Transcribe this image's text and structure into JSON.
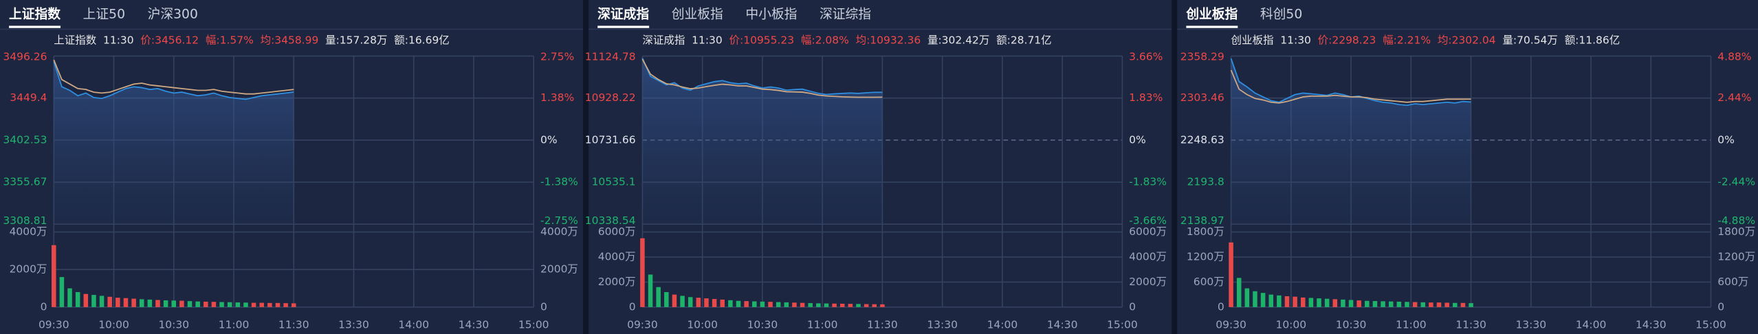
{
  "chart_data": [
    {
      "type": "line",
      "tabs": [
        "上证指数",
        "上证50",
        "沪深300"
      ],
      "active_tab": 0,
      "info": [
        {
          "text": "上证指数",
          "color": "#e6e6e6"
        },
        {
          "text": "11:30",
          "color": "#e6e6e6"
        },
        {
          "text": "价:3456.12",
          "color": "#f04848"
        },
        {
          "text": "幅:1.57%",
          "color": "#f04848"
        },
        {
          "text": "均:3458.99",
          "color": "#f04848"
        },
        {
          "text": "量:157.28万",
          "color": "#e6e6e6"
        },
        {
          "text": "额:16.69亿",
          "color": "#e6e6e6"
        }
      ],
      "x": [
        0,
        4,
        8,
        12,
        16,
        20,
        24,
        28,
        32,
        36,
        40,
        44,
        48,
        52,
        56,
        60,
        64,
        68,
        72,
        76,
        80,
        84,
        88,
        92,
        96,
        100,
        104,
        108,
        112,
        116,
        120
      ],
      "xlim": [
        0,
        240
      ],
      "xticks": [
        {
          "value": 0,
          "label": "09:30"
        },
        {
          "value": 30,
          "label": "10:00"
        },
        {
          "value": 60,
          "label": "10:30"
        },
        {
          "value": 90,
          "label": "11:00"
        },
        {
          "value": 120,
          "label": "11:30"
        },
        {
          "value": 150,
          "label": "13:30"
        },
        {
          "value": 180,
          "label": "14:00"
        },
        {
          "value": 210,
          "label": "14:30"
        },
        {
          "value": 240,
          "label": "15:00"
        }
      ],
      "ylim": [
        3308.81,
        3496.26
      ],
      "yticks": [
        3496.26,
        3449.4,
        3402.53,
        3355.67,
        3308.81
      ],
      "y2lim": [
        -2.75,
        2.75
      ],
      "y2ticks": [
        {
          "value": 2.75,
          "label": "2.75%"
        },
        {
          "value": 1.38,
          "label": "1.38%"
        },
        {
          "value": 0,
          "label": "0%"
        },
        {
          "value": -1.38,
          "label": "-1.38%"
        },
        {
          "value": -2.75,
          "label": "-2.75%"
        }
      ],
      "series": [
        {
          "color": "#2e8fe0",
          "values": [
            3490,
            3462,
            3458,
            3452,
            3455,
            3450,
            3449,
            3452,
            3456,
            3460,
            3462,
            3461,
            3459,
            3460,
            3457,
            3455,
            3456,
            3454,
            3452,
            3453,
            3455,
            3452,
            3450,
            3449,
            3448,
            3450,
            3452,
            3453,
            3454,
            3455,
            3456.12
          ]
        },
        {
          "color": "#cfa983",
          "values": [
            3492,
            3470,
            3465,
            3460,
            3459,
            3456,
            3455,
            3456,
            3459,
            3462,
            3465,
            3466,
            3464,
            3463,
            3462,
            3461,
            3460,
            3459,
            3458,
            3458,
            3459,
            3457,
            3456,
            3455,
            3454,
            3454,
            3455,
            3456,
            3457,
            3458,
            3458.99
          ]
        }
      ],
      "volume": {
        "type": "bar",
        "up_color": "#e84a4a",
        "down_color": "#1db36b",
        "ylim": [
          0,
          4000
        ],
        "yticks": [
          {
            "value": 4000,
            "label": "4000万"
          },
          {
            "value": 2000,
            "label": "2000万"
          },
          0
        ],
        "values": [
          3300,
          1600,
          1000,
          800,
          700,
          650,
          600,
          550,
          500,
          480,
          450,
          420,
          400,
          380,
          360,
          350,
          340,
          320,
          300,
          290,
          280,
          270,
          260,
          250,
          240,
          230,
          230,
          220,
          220,
          210,
          200
        ]
      }
    },
    {
      "type": "line",
      "tabs": [
        "深证成指",
        "创业板指",
        "中小板指",
        "深证综指"
      ],
      "active_tab": 0,
      "info": [
        {
          "text": "深证成指",
          "color": "#e6e6e6"
        },
        {
          "text": "11:30",
          "color": "#e6e6e6"
        },
        {
          "text": "价:10955.23",
          "color": "#f04848"
        },
        {
          "text": "幅:2.08%",
          "color": "#f04848"
        },
        {
          "text": "均:10932.36",
          "color": "#f04848"
        },
        {
          "text": "量:302.42万",
          "color": "#e6e6e6"
        },
        {
          "text": "额:28.71亿",
          "color": "#e6e6e6"
        }
      ],
      "x": [
        0,
        4,
        8,
        12,
        16,
        20,
        24,
        28,
        32,
        36,
        40,
        44,
        48,
        52,
        56,
        60,
        64,
        68,
        72,
        76,
        80,
        84,
        88,
        92,
        96,
        100,
        104,
        108,
        112,
        116,
        120
      ],
      "xlim": [
        0,
        240
      ],
      "xticks": [
        {
          "value": 0,
          "label": "09:30"
        },
        {
          "value": 30,
          "label": "10:00"
        },
        {
          "value": 60,
          "label": "10:30"
        },
        {
          "value": 90,
          "label": "11:00"
        },
        {
          "value": 120,
          "label": "11:30"
        },
        {
          "value": 150,
          "label": "13:30"
        },
        {
          "value": 180,
          "label": "14:00"
        },
        {
          "value": 210,
          "label": "14:30"
        },
        {
          "value": 240,
          "label": "15:00"
        }
      ],
      "ylim": [
        10338.54,
        11124.78
      ],
      "yticks": [
        11124.78,
        10928.22,
        10731.66,
        10535.1,
        10338.54
      ],
      "y2lim": [
        -3.66,
        3.66
      ],
      "y2ticks": [
        {
          "value": 3.66,
          "label": "3.66%"
        },
        {
          "value": 1.83,
          "label": "1.83%"
        },
        {
          "value": 0,
          "label": "0%"
        },
        {
          "value": -1.83,
          "label": "-1.83%"
        },
        {
          "value": -3.66,
          "label": "-3.66%"
        }
      ],
      "series": [
        {
          "color": "#2e8fe0",
          "values": [
            11115,
            11030,
            11010,
            10990,
            11000,
            10975,
            10965,
            10985,
            10995,
            11005,
            11010,
            11000,
            10995,
            10998,
            10985,
            10975,
            10980,
            10975,
            10965,
            10968,
            10970,
            10960,
            10950,
            10945,
            10948,
            10950,
            10952,
            10950,
            10953,
            10955,
            10955.23
          ]
        },
        {
          "color": "#cfa983",
          "values": [
            11110,
            11040,
            11015,
            10995,
            10990,
            10980,
            10972,
            10975,
            10982,
            10988,
            10993,
            10990,
            10985,
            10985,
            10978,
            10970,
            10968,
            10964,
            10958,
            10957,
            10956,
            10950,
            10942,
            10938,
            10936,
            10934,
            10933,
            10932,
            10932,
            10932,
            10932.36
          ]
        }
      ],
      "volume": {
        "type": "bar",
        "up_color": "#e84a4a",
        "down_color": "#1db36b",
        "ylim": [
          0,
          6000
        ],
        "yticks": [
          {
            "value": 6000,
            "label": "6000万"
          },
          {
            "value": 4000,
            "label": "4000万"
          },
          {
            "value": 2000,
            "label": "2000万"
          },
          0
        ],
        "values": [
          5500,
          2600,
          1600,
          1200,
          1000,
          900,
          800,
          750,
          700,
          650,
          600,
          550,
          500,
          480,
          460,
          440,
          420,
          400,
          380,
          360,
          340,
          320,
          300,
          290,
          280,
          270,
          260,
          250,
          240,
          230,
          220
        ]
      }
    },
    {
      "type": "line",
      "tabs": [
        "创业板指",
        "科创50"
      ],
      "active_tab": 0,
      "info": [
        {
          "text": "创业板指",
          "color": "#e6e6e6"
        },
        {
          "text": "11:30",
          "color": "#e6e6e6"
        },
        {
          "text": "价:2298.23",
          "color": "#f04848"
        },
        {
          "text": "幅:2.21%",
          "color": "#f04848"
        },
        {
          "text": "均:2302.04",
          "color": "#f04848"
        },
        {
          "text": "量:70.54万",
          "color": "#e6e6e6"
        },
        {
          "text": "额:11.86亿",
          "color": "#e6e6e6"
        }
      ],
      "x": [
        0,
        4,
        8,
        12,
        16,
        20,
        24,
        28,
        32,
        36,
        40,
        44,
        48,
        52,
        56,
        60,
        64,
        68,
        72,
        76,
        80,
        84,
        88,
        92,
        96,
        100,
        104,
        108,
        112,
        116,
        120
      ],
      "xlim": [
        0,
        240
      ],
      "xticks": [
        {
          "value": 0,
          "label": "09:30"
        },
        {
          "value": 30,
          "label": "10:00"
        },
        {
          "value": 60,
          "label": "10:30"
        },
        {
          "value": 90,
          "label": "11:00"
        },
        {
          "value": 120,
          "label": "11:30"
        },
        {
          "value": 150,
          "label": "13:30"
        },
        {
          "value": 180,
          "label": "14:00"
        },
        {
          "value": 210,
          "label": "14:30"
        },
        {
          "value": 240,
          "label": "15:00"
        }
      ],
      "ylim": [
        2138.97,
        2358.29
      ],
      "yticks": [
        2358.29,
        2303.46,
        2248.63,
        2193.8,
        2138.97
      ],
      "y2lim": [
        -4.88,
        4.88
      ],
      "y2ticks": [
        {
          "value": 4.88,
          "label": "4.88%"
        },
        {
          "value": 2.44,
          "label": "2.44%"
        },
        {
          "value": 0,
          "label": "0%"
        },
        {
          "value": -2.44,
          "label": "-2.44%"
        },
        {
          "value": -4.88,
          "label": "-4.88%"
        }
      ],
      "series": [
        {
          "color": "#2e8fe0",
          "values": [
            2355,
            2325,
            2318,
            2310,
            2305,
            2300,
            2298,
            2303,
            2308,
            2310,
            2309,
            2308,
            2307,
            2310,
            2308,
            2305,
            2306,
            2303,
            2300,
            2298,
            2297,
            2295,
            2294,
            2296,
            2295,
            2296,
            2297,
            2298,
            2297,
            2299,
            2298.23
          ]
        },
        {
          "color": "#cfa983",
          "values": [
            2340,
            2315,
            2308,
            2303,
            2301,
            2298,
            2297,
            2299,
            2302,
            2305,
            2306,
            2306,
            2306,
            2307,
            2306,
            2305,
            2305,
            2304,
            2302,
            2301,
            2300,
            2299,
            2298,
            2299,
            2299,
            2300,
            2301,
            2302,
            2302,
            2302,
            2302.04
          ]
        }
      ],
      "volume": {
        "type": "bar",
        "up_color": "#e84a4a",
        "down_color": "#1db36b",
        "ylim": [
          0,
          1800
        ],
        "yticks": [
          {
            "value": 1800,
            "label": "1800万"
          },
          {
            "value": 1200,
            "label": "1200万"
          },
          {
            "value": 600,
            "label": "600万"
          },
          0
        ],
        "values": [
          1550,
          700,
          450,
          380,
          340,
          300,
          280,
          260,
          250,
          230,
          220,
          210,
          200,
          190,
          180,
          170,
          160,
          150,
          145,
          140,
          135,
          130,
          125,
          120,
          115,
          110,
          110,
          105,
          100,
          100,
          95
        ]
      }
    }
  ]
}
